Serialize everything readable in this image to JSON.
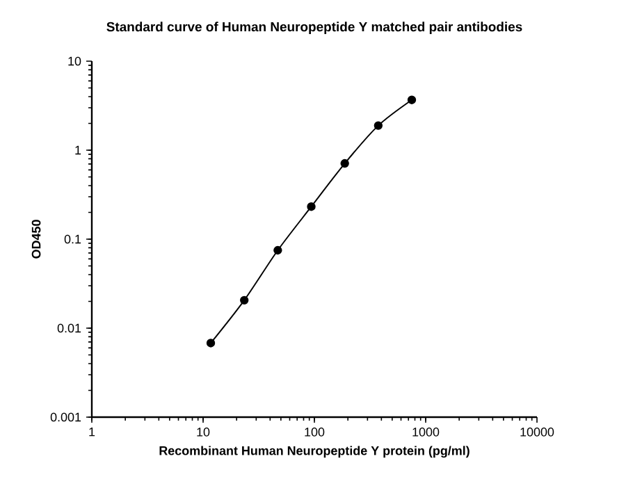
{
  "chart_data": {
    "type": "line",
    "title": "Standard curve of Human Neuropeptide Y matched pair antibodies",
    "xlabel": "Recombinant Human Neuropeptide Y protein (pg/ml)",
    "ylabel": "OD450",
    "x": [
      11.72,
      23.44,
      46.88,
      93.75,
      187.5,
      375,
      750
    ],
    "series": [
      {
        "color": "#000000",
        "values": [
          0.0068,
          0.0206,
          0.075,
          0.232,
          0.71,
          1.89,
          3.67
        ]
      }
    ],
    "log": "xy",
    "xlim": [
      1,
      10000
    ],
    "ylim": [
      0.001,
      10
    ],
    "xticks": [
      1,
      10,
      100,
      1000,
      10000
    ],
    "yticks": [
      0.001,
      0.01,
      0.1,
      1,
      10
    ],
    "marker": "circle",
    "line_style": "solid",
    "grid": false
  }
}
